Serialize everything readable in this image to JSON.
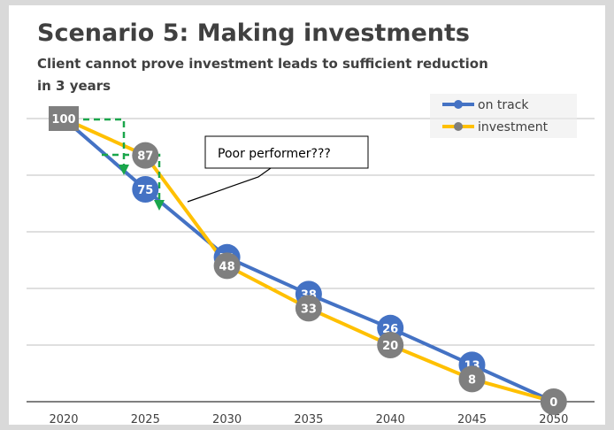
{
  "chart_data": {
    "type": "line",
    "title": "Scenario 5: Making investments",
    "subtitle_lines": [
      "Client cannot prove investment leads to sufficient reduction",
      "in 3 years"
    ],
    "categories": [
      "2020",
      "2025",
      "2030",
      "2035",
      "2040",
      "2045",
      "2050"
    ],
    "ylim": [
      0,
      120
    ],
    "grid": true,
    "legend_position": "top-right",
    "series": [
      {
        "name": "on track",
        "color": "#4472c4",
        "marker_color": "#4472c4",
        "values": [
          100,
          75,
          51,
          38,
          26,
          13,
          0
        ],
        "labels": [
          "",
          "75",
          "51",
          "38",
          "26",
          "13",
          ""
        ]
      },
      {
        "name": "investment",
        "color": "#ffc000",
        "marker_color": "#7f7f7f",
        "values": [
          100,
          87,
          48,
          33,
          20,
          8,
          0
        ],
        "labels": [
          "100",
          "87",
          "48",
          "33",
          "20",
          "8",
          "0"
        ]
      }
    ],
    "annotation": "Poor performer???"
  }
}
